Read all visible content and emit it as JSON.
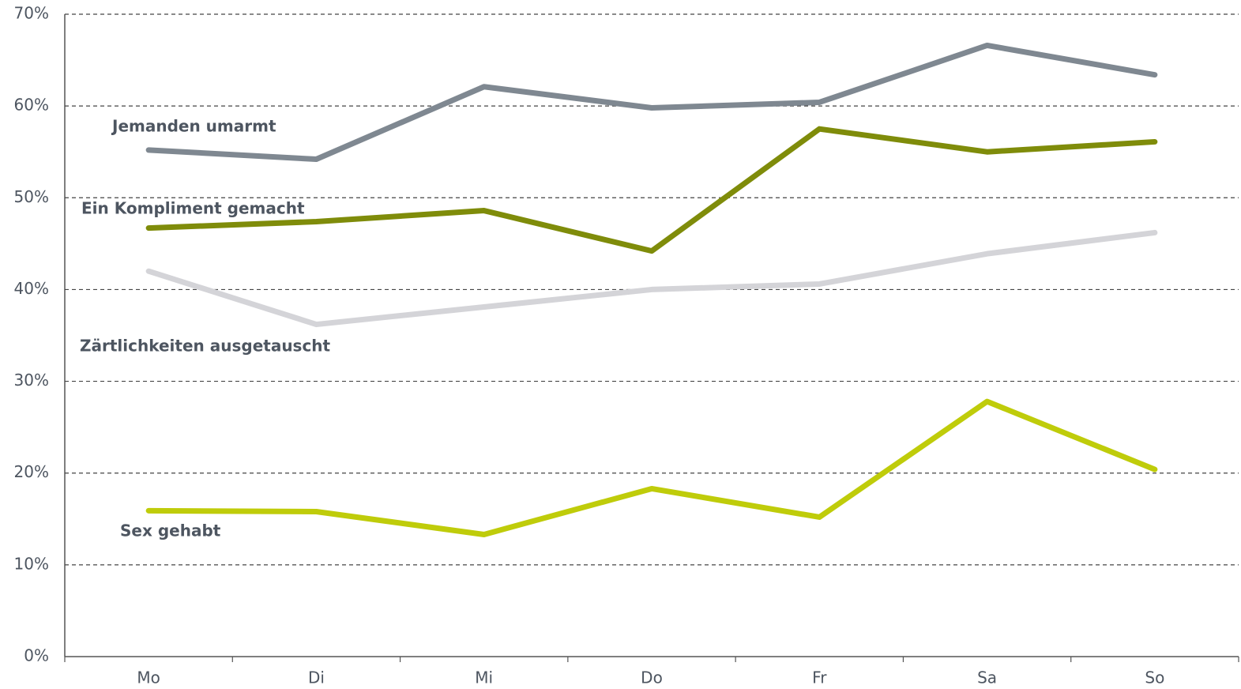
{
  "chart_data": {
    "type": "line",
    "categories": [
      "Mo",
      "Di",
      "Mi",
      "Do",
      "Fr",
      "Sa",
      "So"
    ],
    "series": [
      {
        "name": "Jemanden umarmt",
        "color": "#7f8891",
        "values": [
          55.2,
          54.2,
          62.1,
          59.8,
          60.4,
          66.6,
          63.4
        ]
      },
      {
        "name": "Ein Kompliment gemacht",
        "color": "#7f8c0a",
        "values": [
          46.7,
          47.4,
          48.6,
          44.2,
          57.5,
          55.0,
          56.1
        ]
      },
      {
        "name": "Zärtlichkeiten ausgetauscht",
        "color": "#d4d4d8",
        "values": [
          42.0,
          36.2,
          38.1,
          40.0,
          40.6,
          43.9,
          46.2
        ]
      },
      {
        "name": "Sex gehabt",
        "color": "#bfcc0a",
        "values": [
          15.9,
          15.8,
          13.3,
          18.3,
          15.2,
          27.8,
          20.4
        ]
      }
    ],
    "ylim": [
      0,
      70
    ],
    "yticks": [
      {
        "value": 0,
        "label": "0%"
      },
      {
        "value": 10,
        "label": "10%"
      },
      {
        "value": 20,
        "label": "20%"
      },
      {
        "value": 30,
        "label": "30%"
      },
      {
        "value": 40,
        "label": "40%"
      },
      {
        "value": 50,
        "label": "50%"
      },
      {
        "value": 60,
        "label": "60%"
      },
      {
        "value": 70,
        "label": "70%"
      }
    ],
    "grid": true
  }
}
